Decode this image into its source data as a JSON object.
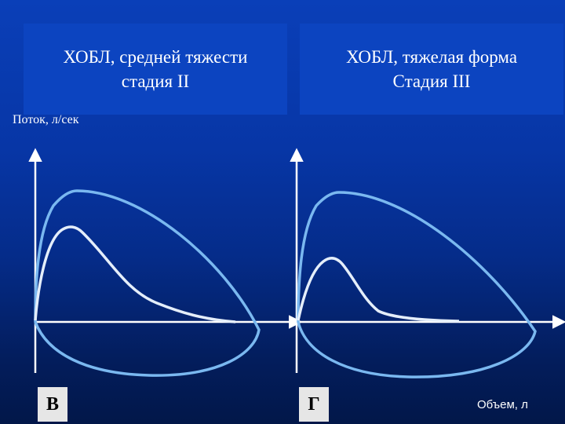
{
  "left_panel": {
    "title_line1": "ХОБЛ, средней тяжести",
    "title_line2": "стадия II",
    "label": "В"
  },
  "right_panel": {
    "title_line1": "ХОБЛ, тяжелая форма",
    "title_line2": "Стадия III",
    "label": "Г"
  },
  "axes": {
    "y_label": "Поток, л/сек",
    "x_label": "Объем, л"
  },
  "colors": {
    "normal_loop": "#7ab8f0",
    "copd_loop": "#e4eefa",
    "axis": "#ffffff",
    "title_box": "#0c44c0"
  }
}
